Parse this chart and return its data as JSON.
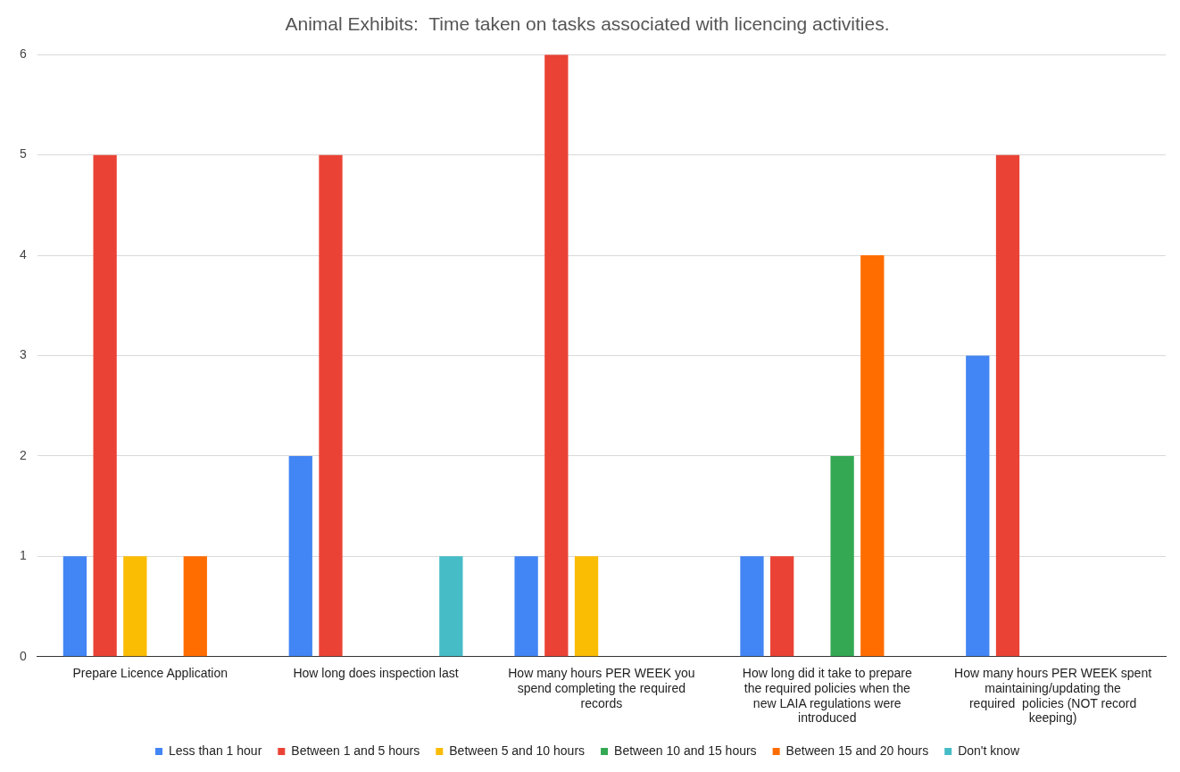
{
  "chart_data": {
    "type": "bar",
    "title": "Animal Exhibits:  Time taken on tasks associated with licencing activities.",
    "categories": [
      "Prepare Licence Application",
      "How long does inspection last",
      "How many hours PER WEEK you spend completing the required records",
      "How long did it take to prepare the required policies when the new LAIA regulations were introduced",
      "How many hours PER WEEK spent maintaining/updating the required  policies (NOT record keeping)"
    ],
    "series": [
      {
        "name": "Less than 1 hour",
        "color": "#4285f4",
        "values": [
          1,
          2,
          1,
          1,
          3
        ]
      },
      {
        "name": "Between 1 and 5 hours",
        "color": "#ea4335",
        "values": [
          5,
          5,
          6,
          1,
          5
        ]
      },
      {
        "name": "Between 5 and 10 hours",
        "color": "#fbbc04",
        "values": [
          1,
          0,
          1,
          0,
          0
        ]
      },
      {
        "name": "Between 10 and 15 hours",
        "color": "#34a853",
        "values": [
          0,
          0,
          0,
          2,
          0
        ]
      },
      {
        "name": "Between 15 and 20 hours",
        "color": "#ff6d01",
        "values": [
          1,
          0,
          0,
          4,
          0
        ]
      },
      {
        "name": "Don't know",
        "color": "#46bdc6",
        "values": [
          0,
          1,
          0,
          0,
          0
        ]
      }
    ],
    "ylim": [
      0,
      6
    ],
    "yticks": [
      0,
      1,
      2,
      3,
      4,
      5,
      6
    ],
    "grid": "y",
    "legend": "bottom"
  }
}
